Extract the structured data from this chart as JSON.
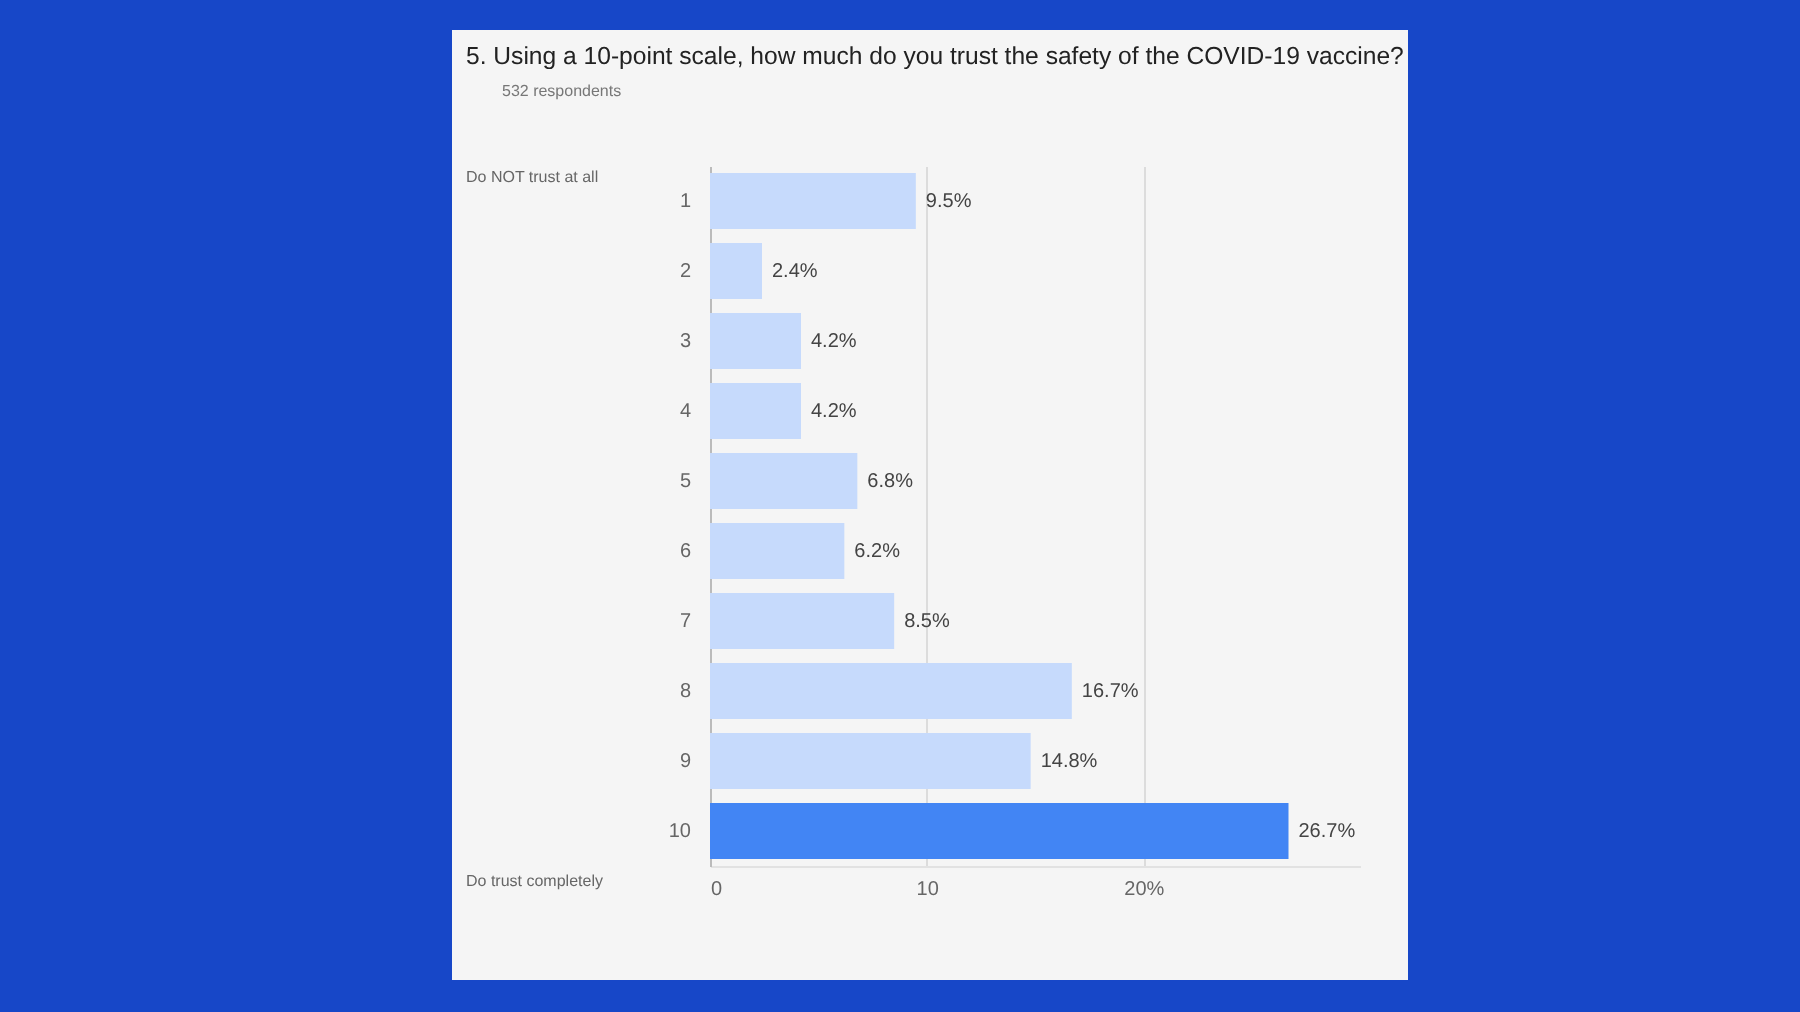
{
  "chart_data": {
    "type": "bar",
    "orientation": "horizontal",
    "title": "5.  Using a 10-point scale, how much do you trust the safety of the COVID-19 vaccine?",
    "subtitle": "532 respondents",
    "annotations": [
      "Do NOT trust at all",
      "Do trust completely"
    ],
    "categories": [
      "1",
      "2",
      "3",
      "4",
      "5",
      "6",
      "7",
      "8",
      "9",
      "10"
    ],
    "values": [
      9.5,
      2.4,
      4.2,
      4.2,
      6.8,
      6.2,
      8.5,
      16.7,
      14.8,
      26.7
    ],
    "value_labels": [
      "9.5%",
      "2.4%",
      "4.2%",
      "4.2%",
      "6.8%",
      "6.2%",
      "8.5%",
      "16.7%",
      "14.8%",
      "26.7%"
    ],
    "colors": [
      "#c6dafc",
      "#c6dafc",
      "#c6dafc",
      "#c6dafc",
      "#c6dafc",
      "#c6dafc",
      "#c6dafc",
      "#c6dafc",
      "#c6dafc",
      "#4285f4"
    ],
    "xlim": [
      0,
      30
    ],
    "xticks": [
      0,
      10,
      {
        "value": 20,
        "label": "20%"
      }
    ],
    "grid": "x"
  }
}
